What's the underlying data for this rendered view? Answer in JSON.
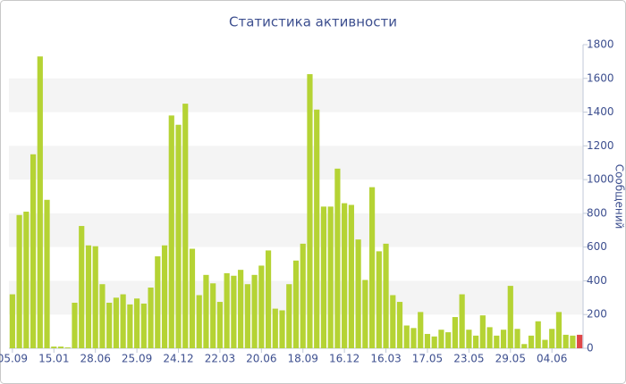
{
  "chart_data": {
    "type": "bar",
    "title": "Статистика активности",
    "y_axis_label": "Сообщений",
    "categories": [
      "05.09",
      null,
      null,
      null,
      null,
      null,
      "15.01",
      null,
      null,
      null,
      null,
      null,
      "28.06",
      null,
      null,
      null,
      null,
      null,
      "25.09",
      null,
      null,
      null,
      null,
      null,
      "24.12",
      null,
      null,
      null,
      null,
      null,
      "22.03",
      null,
      null,
      null,
      null,
      null,
      "20.06",
      null,
      null,
      null,
      null,
      null,
      "18.09",
      null,
      null,
      null,
      null,
      null,
      "16.12",
      null,
      null,
      null,
      null,
      null,
      "16.03",
      null,
      null,
      null,
      null,
      null,
      "17.05",
      null,
      null,
      null,
      null,
      null,
      "23.05",
      null,
      null,
      null,
      null,
      null,
      "29.05",
      null,
      null,
      null,
      null,
      null,
      "04.06",
      null,
      null,
      null,
      null
    ],
    "values": [
      320,
      790,
      810,
      1150,
      1730,
      880,
      10,
      10,
      5,
      270,
      725,
      610,
      605,
      380,
      270,
      300,
      320,
      260,
      295,
      265,
      360,
      545,
      610,
      1380,
      1325,
      1450,
      590,
      315,
      435,
      385,
      275,
      445,
      430,
      465,
      380,
      435,
      490,
      580,
      235,
      225,
      380,
      520,
      620,
      1625,
      1415,
      840,
      840,
      1065,
      860,
      850,
      645,
      405,
      955,
      575,
      620,
      315,
      275,
      135,
      120,
      215,
      85,
      70,
      110,
      95,
      185,
      320,
      110,
      75,
      195,
      125,
      75,
      110,
      370,
      115,
      25,
      75,
      160,
      50,
      115,
      215,
      80,
      75,
      80
    ],
    "color": "#b5d334",
    "last_bar_color": "#e04848",
    "ylim": [
      0,
      1800
    ],
    "yticks": [
      0,
      200,
      400,
      600,
      800,
      1000,
      1200,
      1400,
      1600,
      1800
    ],
    "grid": "bands",
    "y_axis_side": "right"
  }
}
